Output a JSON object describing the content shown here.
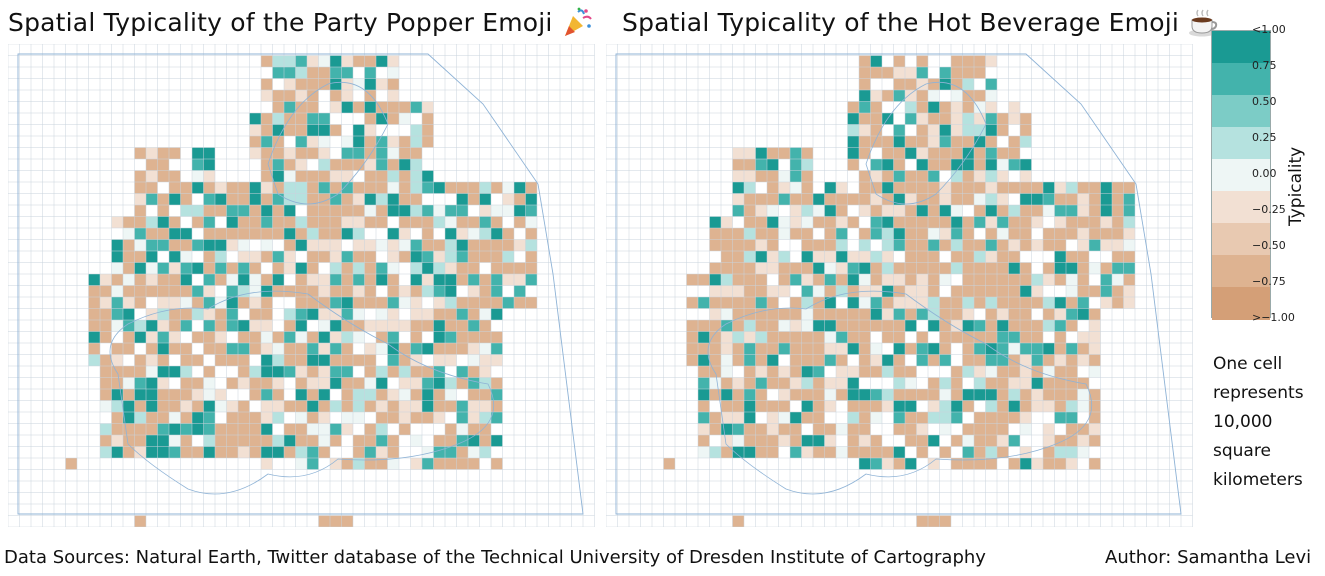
{
  "maps": [
    {
      "title": "Spatial Typicality of the Party Popper Emoji",
      "emoji_icon": "party-popper-icon"
    },
    {
      "title": "Spatial Typicality of the Hot Beverage Emoji",
      "emoji_icon": "hot-beverage-icon"
    }
  ],
  "legend": {
    "title": "Typicality",
    "ticks": [
      "<1.00",
      "0.75",
      "0.50",
      "0.25",
      "0.00",
      "−0.25",
      "−0.50",
      "−0.75",
      ">−1.00"
    ],
    "colors": [
      "#1a9a93",
      "#43b3ac",
      "#7cccc6",
      "#b5e2df",
      "#eef6f5",
      "#f2e0d3",
      "#e8c9b1",
      "#deb391",
      "#d49f77"
    ]
  },
  "cell_note": [
    "One cell",
    "represents",
    "10,000",
    "square",
    "kilometers"
  ],
  "footer": {
    "sources": "Data Sources: Natural Earth, Twitter database of the Technical University of Dresden Institute of Cartography",
    "author": "Author: Samantha Levi"
  },
  "colors": {
    "grid": "#c9d3dc",
    "coast": "#8fb3d6",
    "positive": "#1a9a93",
    "negative": "#d49f77"
  }
}
